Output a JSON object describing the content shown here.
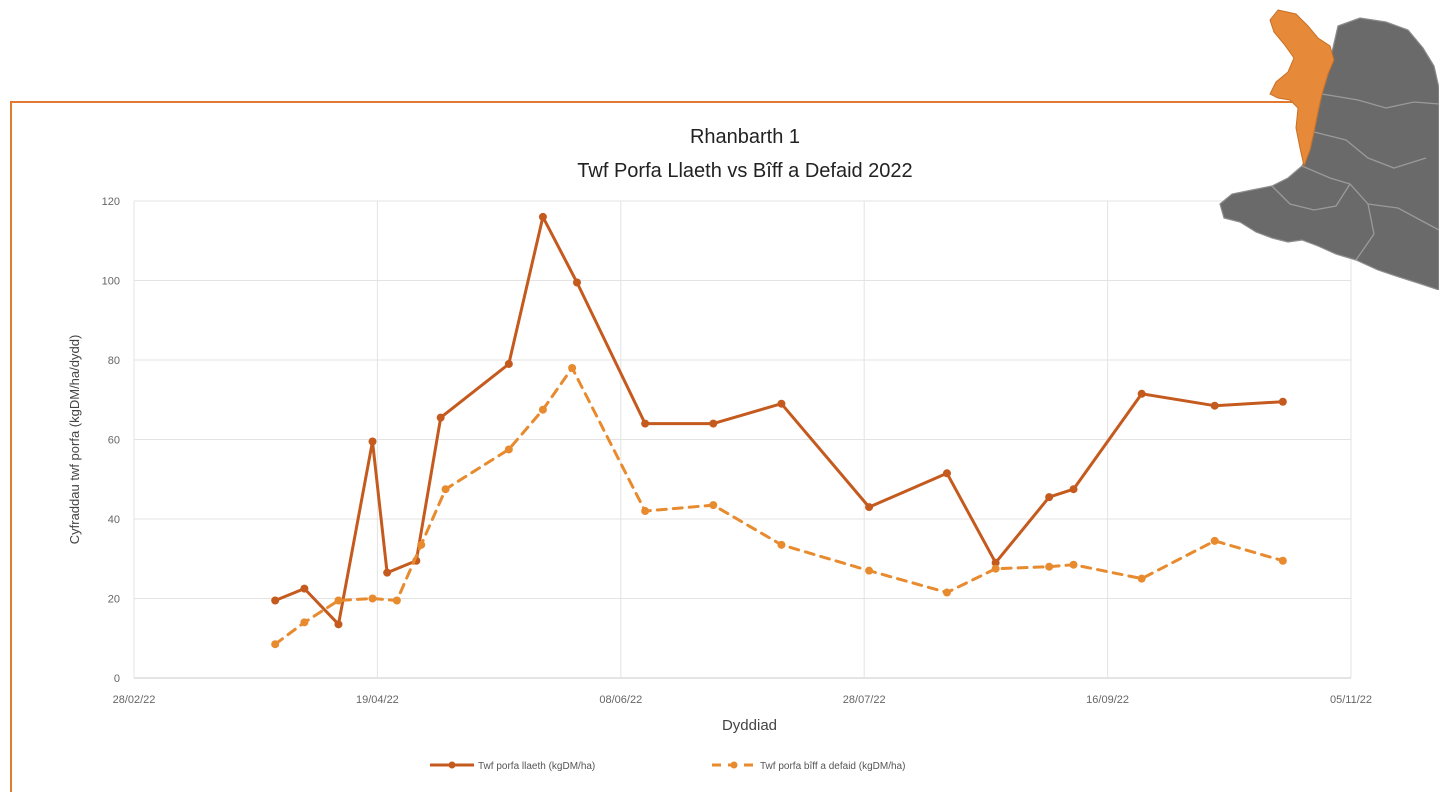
{
  "chart_data": {
    "type": "line",
    "title": "Rhanbarth 1",
    "subtitle": "Twf Porfa Llaeth vs Bîff a Defaid 2022",
    "xlabel": "Dyddiad",
    "ylabel": "Cyfraddau twf porfa (kgDM/ha/dydd)",
    "x_tick_labels": [
      "28/02/22",
      "19/04/22",
      "08/06/22",
      "28/07/22",
      "16/09/22",
      "05/11/22"
    ],
    "x_ticks": [
      "2022-02-28",
      "2022-04-19",
      "2022-06-08",
      "2022-07-28",
      "2022-09-16",
      "2022-11-05"
    ],
    "xlim": [
      "2022-02-28",
      "2022-11-05"
    ],
    "y_tick_labels": [
      "0",
      "20",
      "40",
      "60",
      "80",
      "100",
      "120"
    ],
    "ylim": [
      0,
      120
    ],
    "grid": true,
    "legend_position": "bottom",
    "series": [
      {
        "name": "Twf porfa llaeth (kgDM/ha)",
        "color": "#c55a1e",
        "style": "solid",
        "points": [
          {
            "x": "2022-03-29",
            "y": 19.5
          },
          {
            "x": "2022-04-04",
            "y": 22.5
          },
          {
            "x": "2022-04-11",
            "y": 13.5
          },
          {
            "x": "2022-04-18",
            "y": 59.5
          },
          {
            "x": "2022-04-21",
            "y": 26.5
          },
          {
            "x": "2022-04-27",
            "y": 29.5
          },
          {
            "x": "2022-05-02",
            "y": 65.5
          },
          {
            "x": "2022-05-16",
            "y": 79.0
          },
          {
            "x": "2022-05-23",
            "y": 116.0
          },
          {
            "x": "2022-05-30",
            "y": 99.5
          },
          {
            "x": "2022-06-13",
            "y": 64.0
          },
          {
            "x": "2022-06-27",
            "y": 64.0
          },
          {
            "x": "2022-07-11",
            "y": 69.0
          },
          {
            "x": "2022-07-29",
            "y": 43.0
          },
          {
            "x": "2022-08-14",
            "y": 51.5
          },
          {
            "x": "2022-08-24",
            "y": 29.0
          },
          {
            "x": "2022-09-04",
            "y": 45.5
          },
          {
            "x": "2022-09-09",
            "y": 47.5
          },
          {
            "x": "2022-09-23",
            "y": 71.5
          },
          {
            "x": "2022-10-08",
            "y": 68.5
          },
          {
            "x": "2022-10-22",
            "y": 69.5
          }
        ]
      },
      {
        "name": "Twf porfa bîff a defaid (kgDM/ha)",
        "color": "#e88a2e",
        "style": "dashed",
        "points": [
          {
            "x": "2022-03-29",
            "y": 8.5
          },
          {
            "x": "2022-04-04",
            "y": 14.0
          },
          {
            "x": "2022-04-11",
            "y": 19.5
          },
          {
            "x": "2022-04-18",
            "y": 20.0
          },
          {
            "x": "2022-04-23",
            "y": 19.5
          },
          {
            "x": "2022-04-28",
            "y": 33.5
          },
          {
            "x": "2022-05-03",
            "y": 47.5
          },
          {
            "x": "2022-05-16",
            "y": 57.5
          },
          {
            "x": "2022-05-23",
            "y": 67.5
          },
          {
            "x": "2022-05-29",
            "y": 78.0
          },
          {
            "x": "2022-06-13",
            "y": 42.0
          },
          {
            "x": "2022-06-27",
            "y": 43.5
          },
          {
            "x": "2022-07-11",
            "y": 33.5
          },
          {
            "x": "2022-07-29",
            "y": 27.0
          },
          {
            "x": "2022-08-14",
            "y": 21.5
          },
          {
            "x": "2022-08-24",
            "y": 27.5
          },
          {
            "x": "2022-09-04",
            "y": 28.0
          },
          {
            "x": "2022-09-09",
            "y": 28.5
          },
          {
            "x": "2022-09-23",
            "y": 25.0
          },
          {
            "x": "2022-10-08",
            "y": 34.5
          },
          {
            "x": "2022-10-22",
            "y": 29.5
          }
        ]
      }
    ]
  },
  "colors": {
    "accent": "#e07a33",
    "map_highlight": "#e68a3a",
    "map_other": "#6a6a6a"
  },
  "map": {
    "icon": "wales-region-map-icon",
    "highlighted_region": "Rhanbarth 1"
  }
}
